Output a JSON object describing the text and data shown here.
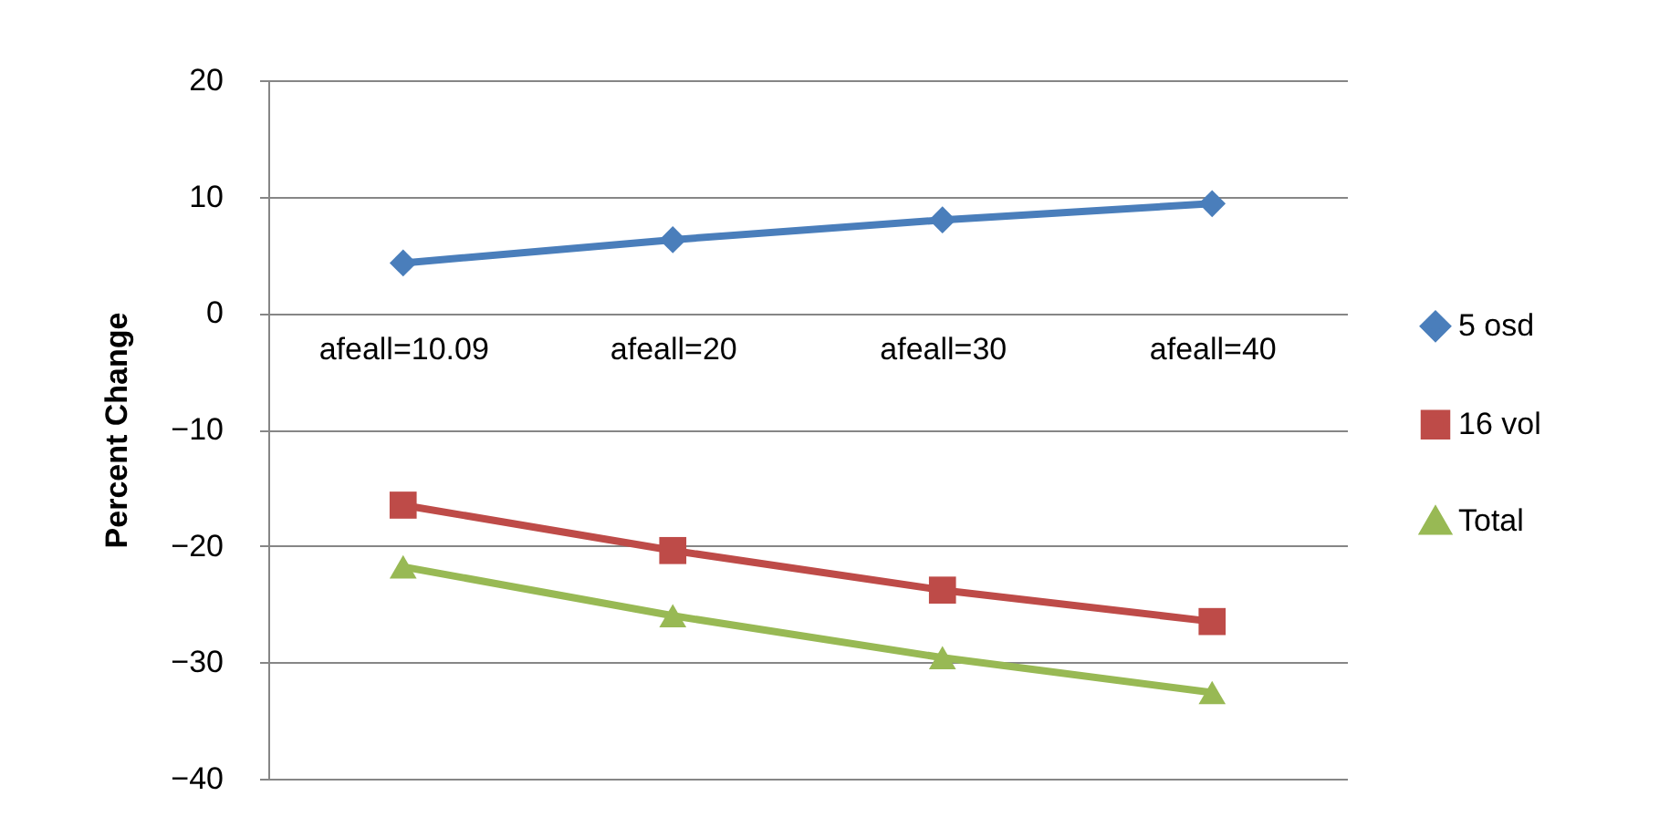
{
  "chart_data": {
    "type": "line",
    "ylabel": "Percent Change",
    "categories": [
      "afeall=10.09",
      "afeall=20",
      "afeall=30",
      "afeall=40"
    ],
    "series": [
      {
        "name": "5 osd",
        "color": "#4a7ebb",
        "marker": "diamond",
        "values": [
          4.3,
          6.3,
          8.0,
          9.4
        ]
      },
      {
        "name": "16 vol",
        "color": "#be4b48",
        "marker": "square",
        "values": [
          -16.5,
          -20.4,
          -23.8,
          -26.5
        ]
      },
      {
        "name": "Total",
        "color": "#98b954",
        "marker": "triangle",
        "values": [
          -21.8,
          -26.0,
          -29.6,
          -32.6
        ]
      }
    ],
    "ylim": [
      -40,
      20
    ],
    "yticks": [
      -40,
      -30,
      -20,
      -10,
      0,
      10,
      20
    ],
    "grid": "y",
    "legend": "right"
  }
}
